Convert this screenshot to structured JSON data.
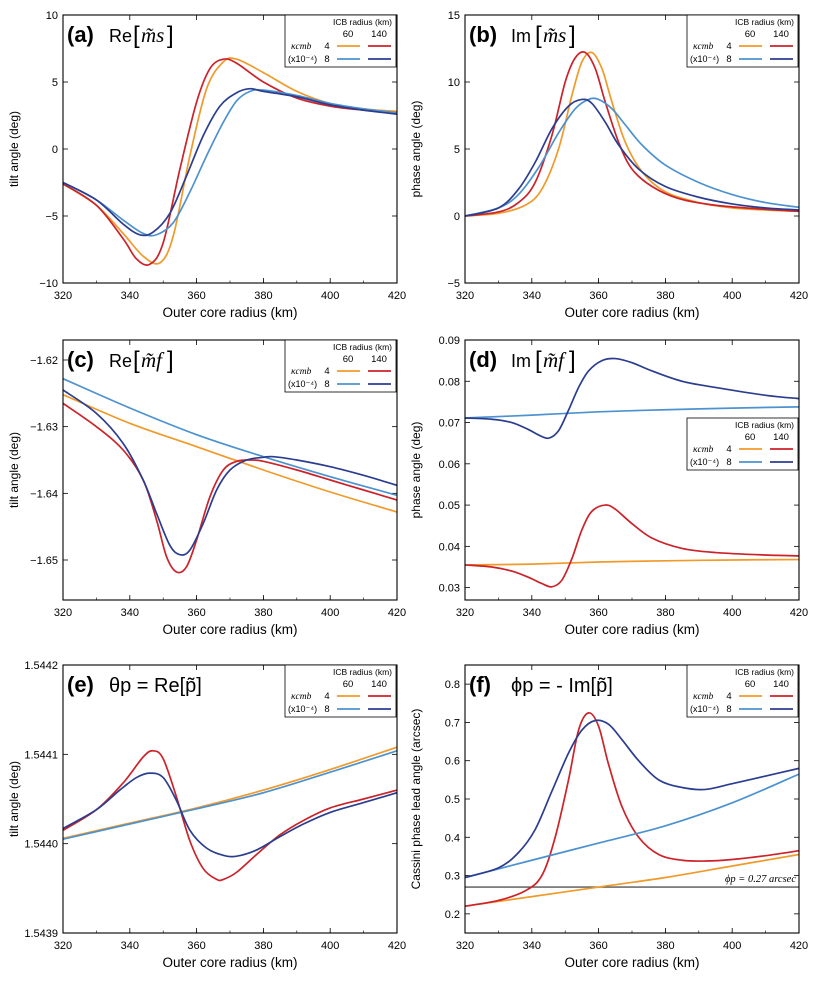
{
  "figure": {
    "xlabel": "Outer core radius (km)",
    "legend": {
      "title": "ICB radius (km)",
      "col_labels": [
        "60",
        "140"
      ],
      "row_label_kappa": "κcmb",
      "row_label_scale": "(x10⁻⁴)",
      "row_values": [
        "4",
        "8"
      ]
    },
    "colors": {
      "k4_icb60": "#f09a2a",
      "k4_icb140": "#cc2229",
      "k8_icb60": "#4d92cf",
      "k8_icb140": "#2b3d8f",
      "ref_line": "#555555"
    }
  },
  "chart_data": [
    {
      "id": "a",
      "type": "line",
      "panel_label": "(a)",
      "title_prefix": "Re",
      "title_symbol": "m̃s",
      "ylabel": "tilt angle (deg)",
      "xlim": [
        320,
        420
      ],
      "ylim": [
        -10,
        10
      ],
      "xticks": [
        "320",
        "340",
        "360",
        "380",
        "400",
        "420"
      ],
      "yticks": [
        -10,
        -5,
        0,
        5,
        10
      ],
      "ytick_labels": [
        "−10",
        "−5",
        "0",
        "5",
        "10"
      ],
      "series": [
        {
          "name": "κcmb=4, ICB=60 km",
          "key": "k4_icb60",
          "x": [
            320,
            330,
            338,
            344,
            349,
            353,
            358,
            363,
            368,
            372,
            380,
            390,
            400,
            410,
            420
          ],
          "y": [
            -2.6,
            -4.2,
            -6.3,
            -8.0,
            -8.5,
            -6.5,
            -0.5,
            4.5,
            6.5,
            6.7,
            5.7,
            4.3,
            3.4,
            3.0,
            2.8
          ]
        },
        {
          "name": "κcmb=4, ICB=140 km",
          "key": "k4_icb140",
          "x": [
            320,
            330,
            338,
            342,
            346,
            350,
            355,
            360,
            364,
            368,
            372,
            380,
            390,
            400,
            410,
            420
          ],
          "y": [
            -2.6,
            -4.2,
            -6.7,
            -8.2,
            -8.6,
            -7.0,
            -1.5,
            3.5,
            6.0,
            6.7,
            6.4,
            5.0,
            3.8,
            3.2,
            2.9,
            2.7
          ]
        },
        {
          "name": "κcmb=8, ICB=60 km",
          "key": "k8_icb60",
          "x": [
            320,
            330,
            338,
            344,
            348,
            353,
            358,
            363,
            368,
            372,
            376,
            380,
            390,
            400,
            410,
            420
          ],
          "y": [
            -2.5,
            -3.8,
            -5.3,
            -6.3,
            -6.4,
            -5.5,
            -3.2,
            -0.5,
            2.0,
            3.6,
            4.3,
            4.4,
            4.0,
            3.4,
            3.0,
            2.7
          ]
        },
        {
          "name": "κcmb=8, ICB=140 km",
          "key": "k8_icb140",
          "x": [
            320,
            330,
            338,
            343,
            347,
            352,
            357,
            362,
            367,
            372,
            376,
            380,
            390,
            400,
            410,
            420
          ],
          "y": [
            -2.5,
            -3.8,
            -5.6,
            -6.4,
            -6.2,
            -4.8,
            -2.0,
            1.0,
            3.2,
            4.2,
            4.5,
            4.3,
            3.9,
            3.3,
            2.9,
            2.6
          ]
        }
      ]
    },
    {
      "id": "b",
      "type": "line",
      "panel_label": "(b)",
      "title_prefix": "Im",
      "title_symbol": "m̃s",
      "ylabel": "phase angle (deg)",
      "xlim": [
        320,
        420
      ],
      "ylim": [
        -5,
        15
      ],
      "xticks": [
        "320",
        "340",
        "360",
        "380",
        "400",
        "420"
      ],
      "yticks": [
        -5,
        0,
        5,
        10,
        15
      ],
      "ytick_labels": [
        "−5",
        "0",
        "5",
        "10",
        "15"
      ],
      "series": [
        {
          "name": "κcmb=4, ICB=60 km",
          "key": "k4_icb60",
          "x": [
            320,
            330,
            338,
            343,
            348,
            352,
            355,
            358,
            361,
            364,
            368,
            373,
            380,
            390,
            400,
            410,
            420
          ],
          "y": [
            0.0,
            0.2,
            0.8,
            2.0,
            5.0,
            9.0,
            11.5,
            12.2,
            11.0,
            8.5,
            5.5,
            3.3,
            1.8,
            1.0,
            0.6,
            0.45,
            0.35
          ]
        },
        {
          "name": "κcmb=4, ICB=140 km",
          "key": "k4_icb140",
          "x": [
            320,
            330,
            336,
            341,
            346,
            350,
            353,
            356,
            359,
            362,
            366,
            370,
            376,
            384,
            395,
            410,
            420
          ],
          "y": [
            0.0,
            0.3,
            1.0,
            2.5,
            6.0,
            10.0,
            11.8,
            12.2,
            11.0,
            8.5,
            5.5,
            3.5,
            2.2,
            1.3,
            0.8,
            0.5,
            0.35
          ]
        },
        {
          "name": "κcmb=8, ICB=60 km",
          "key": "k8_icb60",
          "x": [
            320,
            330,
            336,
            342,
            348,
            353,
            357,
            360,
            364,
            368,
            373,
            380,
            390,
            400,
            410,
            420
          ],
          "y": [
            0.0,
            0.6,
            1.6,
            3.6,
            6.2,
            8.0,
            8.7,
            8.7,
            8.0,
            6.8,
            5.3,
            3.8,
            2.5,
            1.6,
            1.0,
            0.65
          ]
        },
        {
          "name": "κcmb=8, ICB=140 km",
          "key": "k8_icb140",
          "x": [
            320,
            330,
            336,
            341,
            346,
            351,
            355,
            358,
            362,
            366,
            372,
            380,
            390,
            400,
            410,
            420
          ],
          "y": [
            0.0,
            0.6,
            2.0,
            4.0,
            6.5,
            8.2,
            8.7,
            8.4,
            7.0,
            5.3,
            3.5,
            2.2,
            1.4,
            0.9,
            0.6,
            0.45
          ]
        }
      ]
    },
    {
      "id": "c",
      "type": "line",
      "panel_label": "(c)",
      "title_prefix": "Re",
      "title_symbol": "m̃f",
      "ylabel": "tilt angle (deg)",
      "xlim": [
        320,
        420
      ],
      "ylim": [
        -1.656,
        -1.617
      ],
      "xticks": [
        "320",
        "340",
        "360",
        "380",
        "400",
        "420"
      ],
      "yticks": [
        -1.65,
        -1.64,
        -1.63,
        -1.62
      ],
      "ytick_labels": [
        "−1.65",
        "−1.64",
        "−1.63",
        "−1.62"
      ],
      "series": [
        {
          "name": "κcmb=4, ICB=60 km",
          "key": "k4_icb60",
          "x": [
            320,
            340,
            360,
            380,
            400,
            420
          ],
          "y": [
            -1.6252,
            -1.6295,
            -1.633,
            -1.6365,
            -1.6398,
            -1.6428
          ]
        },
        {
          "name": "κcmb=4, ICB=140 km",
          "key": "k4_icb140",
          "x": [
            320,
            330,
            338,
            344,
            348,
            351,
            354,
            357,
            360,
            364,
            368,
            372,
            376,
            380,
            390,
            400,
            410,
            420
          ],
          "y": [
            -1.6265,
            -1.63,
            -1.6335,
            -1.638,
            -1.644,
            -1.6495,
            -1.6518,
            -1.651,
            -1.647,
            -1.6405,
            -1.6365,
            -1.6352,
            -1.635,
            -1.6352,
            -1.6365,
            -1.638,
            -1.6395,
            -1.641
          ]
        },
        {
          "name": "κcmb=8, ICB=60 km",
          "key": "k8_icb60",
          "x": [
            320,
            340,
            360,
            380,
            400,
            420
          ],
          "y": [
            -1.6228,
            -1.6272,
            -1.6312,
            -1.6345,
            -1.6375,
            -1.6403
          ]
        },
        {
          "name": "κcmb=8, ICB=140 km",
          "key": "k8_icb140",
          "x": [
            320,
            330,
            338,
            344,
            348,
            352,
            355,
            358,
            362,
            366,
            370,
            375,
            380,
            383,
            390,
            400,
            410,
            420
          ],
          "y": [
            -1.6245,
            -1.628,
            -1.6325,
            -1.638,
            -1.643,
            -1.6478,
            -1.6492,
            -1.6485,
            -1.6445,
            -1.6395,
            -1.6365,
            -1.635,
            -1.6346,
            -1.6345,
            -1.635,
            -1.636,
            -1.6373,
            -1.6388
          ]
        }
      ]
    },
    {
      "id": "d",
      "type": "line",
      "panel_label": "(d)",
      "title_prefix": "Im",
      "title_symbol": "m̃f",
      "ylabel": "phase angle (deg)",
      "xlim": [
        320,
        420
      ],
      "ylim": [
        0.027,
        0.09
      ],
      "xticks": [
        "320",
        "340",
        "360",
        "380",
        "400",
        "420"
      ],
      "yticks": [
        0.03,
        0.04,
        0.05,
        0.06,
        0.07,
        0.08,
        0.09
      ],
      "ytick_labels": [
        "0.03",
        "0.04",
        "0.05",
        "0.06",
        "0.07",
        "0.08",
        "0.09"
      ],
      "series": [
        {
          "name": "κcmb=4, ICB=60 km",
          "key": "k4_icb60",
          "x": [
            320,
            340,
            360,
            380,
            400,
            420
          ],
          "y": [
            0.0355,
            0.0357,
            0.0362,
            0.0365,
            0.0367,
            0.0368
          ]
        },
        {
          "name": "κcmb=4, ICB=140 km",
          "key": "k4_icb140",
          "x": [
            320,
            328,
            334,
            339,
            343,
            346,
            349,
            352,
            355,
            358,
            362,
            365,
            370,
            376,
            385,
            395,
            410,
            420
          ],
          "y": [
            0.0355,
            0.035,
            0.034,
            0.0325,
            0.031,
            0.0302,
            0.0318,
            0.037,
            0.044,
            0.0485,
            0.05,
            0.049,
            0.0455,
            0.042,
            0.0395,
            0.0385,
            0.0379,
            0.0377
          ]
        },
        {
          "name": "κcmb=8, ICB=60 km",
          "key": "k8_icb60",
          "x": [
            320,
            340,
            360,
            380,
            400,
            420
          ],
          "y": [
            0.0711,
            0.0718,
            0.0726,
            0.0731,
            0.0735,
            0.0738
          ]
        },
        {
          "name": "κcmb=8, ICB=140 km",
          "key": "k8_icb140",
          "x": [
            320,
            328,
            334,
            339,
            342,
            345,
            348,
            351,
            354,
            357,
            361,
            365,
            370,
            376,
            385,
            395,
            410,
            420
          ],
          "y": [
            0.0711,
            0.0708,
            0.07,
            0.0683,
            0.067,
            0.0662,
            0.068,
            0.073,
            0.0785,
            0.0825,
            0.085,
            0.0855,
            0.0845,
            0.0825,
            0.08,
            0.0785,
            0.0766,
            0.0758
          ]
        }
      ]
    },
    {
      "id": "e",
      "type": "line",
      "panel_label": "(e)",
      "title_math": "θp = Re[p̃]",
      "ylabel": "tilt angle (deg)",
      "xlim": [
        320,
        420
      ],
      "ylim": [
        1.5439,
        1.5442
      ],
      "xticks": [
        "320",
        "340",
        "360",
        "380",
        "400",
        "420"
      ],
      "yticks": [
        1.5439,
        1.544,
        1.5441,
        1.5442
      ],
      "ytick_labels": [
        "1.5439",
        "1.5440",
        "1.5441",
        "1.5442"
      ],
      "series": [
        {
          "name": "κcmb=4, ICB=60 km",
          "key": "k4_icb60",
          "x": [
            320,
            340,
            360,
            380,
            400,
            420
          ],
          "y": [
            1.544006,
            1.544023,
            1.54404,
            1.54406,
            1.544083,
            1.544108
          ]
        },
        {
          "name": "κcmb=4, ICB=140 km",
          "key": "k4_icb140",
          "x": [
            320,
            330,
            338,
            344,
            347,
            350,
            354,
            358,
            362,
            366,
            368,
            372,
            378,
            385,
            392,
            400,
            410,
            420
          ],
          "y": [
            1.544015,
            1.544038,
            1.544068,
            1.544097,
            1.544104,
            1.544095,
            1.544052,
            1.544003,
            1.543972,
            1.54396,
            1.54396,
            1.543968,
            1.543988,
            1.54401,
            1.544026,
            1.54404,
            1.54405,
            1.54406
          ]
        },
        {
          "name": "κcmb=8, ICB=60 km",
          "key": "k8_icb60",
          "x": [
            320,
            340,
            360,
            380,
            400,
            420
          ],
          "y": [
            1.544005,
            1.544022,
            1.544039,
            1.544057,
            1.54408,
            1.544104
          ]
        },
        {
          "name": "κcmb=8, ICB=140 km",
          "key": "k8_icb140",
          "x": [
            320,
            330,
            337,
            342,
            346,
            350,
            354,
            358,
            363,
            368,
            372,
            378,
            385,
            392,
            400,
            410,
            420
          ],
          "y": [
            1.544017,
            1.544038,
            1.54406,
            1.544074,
            1.544079,
            1.544074,
            1.544048,
            1.544015,
            1.543995,
            1.543987,
            1.543986,
            1.543993,
            1.544008,
            1.544022,
            1.544035,
            1.544046,
            1.544057
          ]
        }
      ]
    },
    {
      "id": "f",
      "type": "line",
      "panel_label": "(f)",
      "title_math": "ϕp = - Im[p̃]",
      "ylabel": "Cassini phase lead angle (arcsec)",
      "xlim": [
        320,
        420
      ],
      "ylim": [
        0.15,
        0.85
      ],
      "xticks": [
        "320",
        "340",
        "360",
        "380",
        "400",
        "420"
      ],
      "yticks": [
        0.2,
        0.3,
        0.4,
        0.5,
        0.6,
        0.7,
        0.8
      ],
      "ytick_labels": [
        "0.2",
        "0.3",
        "0.4",
        "0.5",
        "0.6",
        "0.7",
        "0.8"
      ],
      "reference_line": {
        "y": 0.27,
        "label": "ϕp = 0.27 arcsec"
      },
      "series": [
        {
          "name": "κcmb=4, ICB=60 km",
          "key": "k4_icb60",
          "x": [
            320,
            340,
            360,
            380,
            400,
            420
          ],
          "y": [
            0.22,
            0.245,
            0.27,
            0.295,
            0.325,
            0.355
          ]
        },
        {
          "name": "κcmb=4, ICB=140 km",
          "key": "k4_icb140",
          "x": [
            320,
            330,
            338,
            343,
            347,
            351,
            354,
            357,
            360,
            363,
            367,
            372,
            378,
            385,
            392,
            400,
            410,
            420
          ],
          "y": [
            0.22,
            0.235,
            0.26,
            0.3,
            0.4,
            0.55,
            0.68,
            0.725,
            0.69,
            0.59,
            0.48,
            0.4,
            0.355,
            0.34,
            0.338,
            0.342,
            0.352,
            0.365
          ]
        },
        {
          "name": "κcmb=8, ICB=60 km",
          "key": "k8_icb60",
          "x": [
            320,
            340,
            360,
            380,
            400,
            420
          ],
          "y": [
            0.295,
            0.34,
            0.385,
            0.43,
            0.49,
            0.565
          ]
        },
        {
          "name": "κcmb=8, ICB=140 km",
          "key": "k8_icb140",
          "x": [
            320,
            330,
            336,
            341,
            346,
            351,
            355,
            359,
            363,
            367,
            372,
            378,
            385,
            392,
            400,
            410,
            420
          ],
          "y": [
            0.295,
            0.32,
            0.36,
            0.42,
            0.52,
            0.62,
            0.68,
            0.705,
            0.695,
            0.655,
            0.6,
            0.55,
            0.53,
            0.525,
            0.54,
            0.56,
            0.58
          ]
        }
      ]
    }
  ]
}
